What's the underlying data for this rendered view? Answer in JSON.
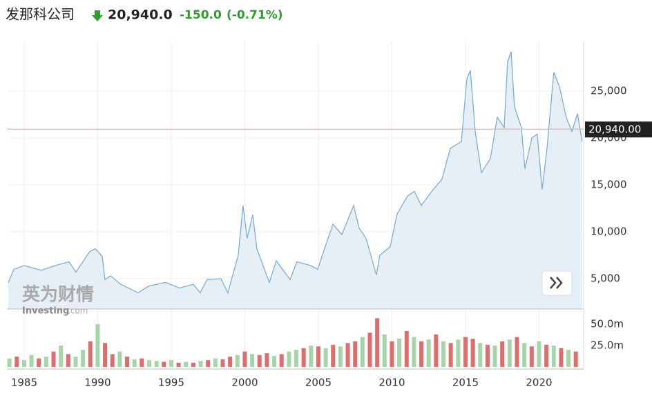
{
  "header": {
    "name": "发那科公司",
    "price": "20,940.0",
    "change": "-150.0",
    "change_pct": "(-0.71%)"
  },
  "watermark": {
    "cn": "英为财情",
    "en": "Investing",
    "suffix": ".com"
  },
  "chart_data": [
    {
      "type": "line",
      "color": "#7aaed6",
      "fill": "#e6eef6",
      "grid": true,
      "x": [
        1983.92,
        1984.3,
        1985.0,
        1986.17,
        1987.11,
        1988.05,
        1988.52,
        1989.46,
        1989.84,
        1990.31,
        1990.49,
        1990.87,
        1991.57,
        1992.75,
        1993.45,
        1994.62,
        1995.56,
        1996.5,
        1996.97,
        1997.44,
        1998.38,
        1998.85,
        1999.55,
        1999.88,
        2000.16,
        2000.54,
        2000.82,
        2001.67,
        2002.14,
        2003.08,
        2003.54,
        2004.48,
        2004.95,
        2005.42,
        2005.99,
        2006.6,
        2007.39,
        2007.77,
        2008.24,
        2008.94,
        2009.18,
        2009.88,
        2010.35,
        2011.06,
        2011.53,
        2012.0,
        2012.7,
        2013.4,
        2013.97,
        2014.72,
        2015.09,
        2015.33,
        2015.66,
        2016.08,
        2016.69,
        2017.16,
        2017.63,
        2017.86,
        2018.1,
        2018.33,
        2018.8,
        2019.04,
        2019.51,
        2019.88,
        2020.21,
        2020.54,
        2021.0,
        2021.38,
        2021.85,
        2022.23,
        2022.61,
        2022.93
      ],
      "values": [
        4560,
        6000,
        6400,
        5900,
        6400,
        6800,
        5700,
        7900,
        8200,
        7400,
        4900,
        5300,
        4400,
        3500,
        4200,
        4600,
        4000,
        4400,
        3500,
        4900,
        5000,
        3500,
        7500,
        12800,
        9300,
        11800,
        8200,
        4600,
        6900,
        4900,
        6800,
        6400,
        6000,
        8200,
        10800,
        9700,
        12800,
        10400,
        9300,
        5400,
        7500,
        8400,
        11900,
        13800,
        14300,
        12800,
        14300,
        15600,
        18900,
        19600,
        26300,
        27200,
        20700,
        16300,
        17800,
        22200,
        21100,
        28100,
        29200,
        23300,
        21100,
        16700,
        20000,
        20400,
        14500,
        18900,
        27000,
        25500,
        22200,
        20700,
        22600,
        19600
      ],
      "xlim": [
        1983.83,
        2023.03
      ],
      "xticks": [
        1985,
        1990,
        1995,
        2000,
        2005,
        2010,
        2015,
        2020
      ],
      "ylim": [
        1765,
        30294
      ],
      "yticks": [
        {
          "value": 5000,
          "label": "5,000"
        },
        {
          "value": 10000,
          "label": "10,000"
        },
        {
          "value": 15000,
          "label": "15,000"
        },
        {
          "value": 20000,
          "label": "20,000"
        },
        {
          "value": 25000,
          "label": "25,000"
        }
      ],
      "current": {
        "value": 20940,
        "label": "20,940.00",
        "color": "#f4a6b0"
      }
    },
    {
      "type": "bar",
      "x": [
        1984.0,
        1984.5,
        1985.0,
        1985.5,
        1986.0,
        1986.5,
        1987.0,
        1987.5,
        1988.0,
        1988.5,
        1989.0,
        1989.5,
        1990.0,
        1990.5,
        1991.0,
        1991.5,
        1992.0,
        1992.5,
        1993.0,
        1993.5,
        1994.0,
        1994.5,
        1995.0,
        1995.5,
        1996.0,
        1996.5,
        1997.0,
        1997.5,
        1998.0,
        1998.5,
        1999.0,
        1999.5,
        2000.0,
        2000.5,
        2001.0,
        2001.5,
        2002.0,
        2002.5,
        2003.0,
        2003.5,
        2004.0,
        2004.5,
        2005.0,
        2005.5,
        2006.0,
        2006.5,
        2007.0,
        2007.5,
        2008.0,
        2008.5,
        2009.0,
        2009.5,
        2010.0,
        2010.5,
        2011.0,
        2011.5,
        2012.0,
        2012.5,
        2013.0,
        2013.5,
        2014.0,
        2014.5,
        2015.0,
        2015.5,
        2016.0,
        2016.5,
        2017.0,
        2017.5,
        2018.0,
        2018.5,
        2019.0,
        2019.5,
        2020.0,
        2020.5,
        2021.0,
        2021.5,
        2022.0,
        2022.5
      ],
      "values": [
        10000000,
        12000000,
        8000000,
        14000000,
        10000000,
        12000000,
        18000000,
        25000000,
        15000000,
        12000000,
        20000000,
        30000000,
        50000000,
        28000000,
        15000000,
        18000000,
        12000000,
        9000000,
        10000000,
        8000000,
        7000000,
        6000000,
        8000000,
        5000000,
        6000000,
        5000000,
        7000000,
        8000000,
        10000000,
        9000000,
        12000000,
        14000000,
        18000000,
        15000000,
        14000000,
        16000000,
        13000000,
        15000000,
        18000000,
        20000000,
        22000000,
        25000000,
        24000000,
        22000000,
        26000000,
        24000000,
        28000000,
        30000000,
        35000000,
        40000000,
        57000000,
        38000000,
        30000000,
        33000000,
        42000000,
        35000000,
        30000000,
        32000000,
        38000000,
        30000000,
        28000000,
        32000000,
        35000000,
        33000000,
        28000000,
        26000000,
        25000000,
        30000000,
        32000000,
        35000000,
        28000000,
        24000000,
        30000000,
        26000000,
        25000000,
        22000000,
        20000000,
        18000000
      ],
      "colors": [
        "#a8d5a8",
        "#e06c6c",
        "#a8d5a8",
        "#a8d5a8",
        "#e06c6c",
        "#a8d5a8",
        "#e06c6c",
        "#a8d5a8",
        "#e06c6c",
        "#a8d5a8",
        "#a8d5a8",
        "#e06c6c",
        "#a8d5a8",
        "#e06c6c",
        "#e06c6c",
        "#a8d5a8",
        "#e06c6c",
        "#a8d5a8",
        "#e06c6c",
        "#a8d5a8",
        "#a8d5a8",
        "#e06c6c",
        "#a8d5a8",
        "#e06c6c",
        "#a8d5a8",
        "#e06c6c",
        "#a8d5a8",
        "#e06c6c",
        "#a8d5a8",
        "#e06c6c",
        "#e06c6c",
        "#a8d5a8",
        "#e06c6c",
        "#a8d5a8",
        "#e06c6c",
        "#e06c6c",
        "#a8d5a8",
        "#e06c6c",
        "#a8d5a8",
        "#a8d5a8",
        "#e06c6c",
        "#a8d5a8",
        "#e06c6c",
        "#a8d5a8",
        "#e06c6c",
        "#a8d5a8",
        "#e06c6c",
        "#e06c6c",
        "#a8d5a8",
        "#e06c6c",
        "#e06c6c",
        "#a8d5a8",
        "#e06c6c",
        "#a8d5a8",
        "#e06c6c",
        "#a8d5a8",
        "#e06c6c",
        "#a8d5a8",
        "#e06c6c",
        "#a8d5a8",
        "#e06c6c",
        "#a8d5a8",
        "#e06c6c",
        "#e06c6c",
        "#a8d5a8",
        "#e06c6c",
        "#a8d5a8",
        "#e06c6c",
        "#a8d5a8",
        "#e06c6c",
        "#a8d5a8",
        "#e06c6c",
        "#a8d5a8",
        "#e06c6c",
        "#a8d5a8",
        "#e06c6c",
        "#a8d5a8",
        "#e06c6c"
      ],
      "xlim": [
        1983.83,
        2023.03
      ],
      "ylim": [
        -2400000,
        67700000
      ],
      "yticks": [
        {
          "value": 25000000,
          "label": "25.0m"
        },
        {
          "value": 50000000,
          "label": "50.0m"
        }
      ]
    }
  ]
}
